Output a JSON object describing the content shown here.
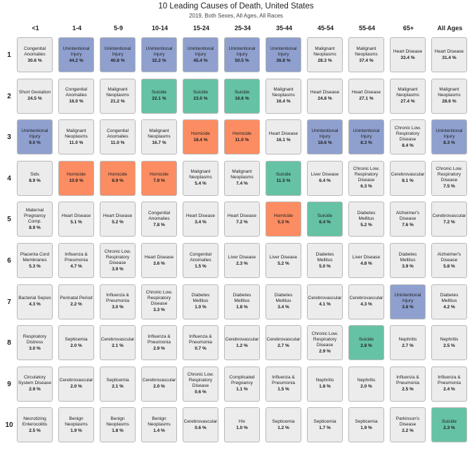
{
  "chart_data": {
    "type": "table",
    "title": "10 Leading Causes of Death, United States",
    "subtitle": "2019, Both Sexes, All Ages, All Races",
    "columns": [
      "<1",
      "1-4",
      "5-9",
      "10-14",
      "15-24",
      "25-34",
      "35-44",
      "45-54",
      "55-64",
      "65+",
      "All Ages"
    ],
    "rows": [
      "1",
      "2",
      "3",
      "4",
      "5",
      "6",
      "7",
      "8",
      "9",
      "10"
    ],
    "highlight_colors": {
      "Unintentional Injury": "#8fa0cf",
      "Suicide": "#66c2a5",
      "Homicide": "#fc8d62",
      "default": "#ececec"
    },
    "cells": [
      [
        {
          "cause": "Congenital Anomalies",
          "pct": "30.6 %"
        },
        {
          "cause": "Unintentional Injury",
          "pct": "44.2 %"
        },
        {
          "cause": "Unintentional Injury",
          "pct": "40.8 %"
        },
        {
          "cause": "Unintentional Injury",
          "pct": "32.2 %"
        },
        {
          "cause": "Unintentional Injury",
          "pct": "45.4 %"
        },
        {
          "cause": "Unintentional Injury",
          "pct": "50.5 %"
        },
        {
          "cause": "Unintentional Injury",
          "pct": "36.8 %"
        },
        {
          "cause": "Malignant Neoplasms",
          "pct": "28.3 %"
        },
        {
          "cause": "Malignant Neoplasms",
          "pct": "37.4 %"
        },
        {
          "cause": "Heart Disease",
          "pct": "33.4 %"
        },
        {
          "cause": "Heart Disease",
          "pct": "31.4 %"
        }
      ],
      [
        {
          "cause": "Short Gestation",
          "pct": "24.5 %"
        },
        {
          "cause": "Congenital Anomalies",
          "pct": "16.0 %"
        },
        {
          "cause": "Malignant Neoplasms",
          "pct": "21.2 %"
        },
        {
          "cause": "Suicide",
          "pct": "22.1 %"
        },
        {
          "cause": "Suicide",
          "pct": "23.0 %"
        },
        {
          "cause": "Suicide",
          "pct": "16.6 %"
        },
        {
          "cause": "Malignant Neoplasms",
          "pct": "16.4 %"
        },
        {
          "cause": "Heart Disease",
          "pct": "24.8 %"
        },
        {
          "cause": "Heart Disease",
          "pct": "27.1 %"
        },
        {
          "cause": "Malignant Neoplasms",
          "pct": "27.4 %"
        },
        {
          "cause": "Malignant Neoplasms",
          "pct": "28.6 %"
        }
      ],
      [
        {
          "cause": "Unintentional Injury",
          "pct": "9.0 %"
        },
        {
          "cause": "Malignant Neoplasms",
          "pct": "11.0 %"
        },
        {
          "cause": "Congenital Anomalies",
          "pct": "11.0 %"
        },
        {
          "cause": "Malignant Neoplasms",
          "pct": "16.7 %"
        },
        {
          "cause": "Homicide",
          "pct": "18.4 %"
        },
        {
          "cause": "Homicide",
          "pct": "11.0 %"
        },
        {
          "cause": "Heart Disease",
          "pct": "16.1 %"
        },
        {
          "cause": "Unintentional Injury",
          "pct": "18.6 %"
        },
        {
          "cause": "Unintentional Injury",
          "pct": "8.3 %"
        },
        {
          "cause": "Chronic Low. Respiratory Disease",
          "pct": "8.4 %"
        },
        {
          "cause": "Unintentional Injury",
          "pct": "8.3 %"
        }
      ],
      [
        {
          "cause": "Sids",
          "pct": "8.9 %"
        },
        {
          "cause": "Homicide",
          "pct": "10.9 %"
        },
        {
          "cause": "Homicide",
          "pct": "8.9 %"
        },
        {
          "cause": "Homicide",
          "pct": "7.9 %"
        },
        {
          "cause": "Malignant Neoplasms",
          "pct": "5.4 %"
        },
        {
          "cause": "Malignant Neoplasms",
          "pct": "7.4 %"
        },
        {
          "cause": "Suicide",
          "pct": "11.5 %"
        },
        {
          "cause": "Liver Disease",
          "pct": "6.4 %"
        },
        {
          "cause": "Chronic Low. Respiratory Disease",
          "pct": "6.3 %"
        },
        {
          "cause": "Cerebrovascular",
          "pct": "8.1 %"
        },
        {
          "cause": "Chronic Low. Respiratory Disease",
          "pct": "7.5 %"
        }
      ],
      [
        {
          "cause": "Maternal Pregnancy Comp.",
          "pct": "8.9 %"
        },
        {
          "cause": "Heart Disease",
          "pct": "5.1 %"
        },
        {
          "cause": "Heart Disease",
          "pct": "5.2 %"
        },
        {
          "cause": "Congenital Anomalies",
          "pct": "7.8 %"
        },
        {
          "cause": "Heart Disease",
          "pct": "3.4 %"
        },
        {
          "cause": "Heart Disease",
          "pct": "7.2 %"
        },
        {
          "cause": "Homicide",
          "pct": "5.3 %"
        },
        {
          "cause": "Suicide",
          "pct": "6.4 %"
        },
        {
          "cause": "Diabetes Mellitus",
          "pct": "5.2 %"
        },
        {
          "cause": "Alzheimer's Disease",
          "pct": "7.6 %"
        },
        {
          "cause": "Cerebrovascular",
          "pct": "7.2 %"
        }
      ],
      [
        {
          "cause": "Placenta Cord Membranes",
          "pct": "5.3 %"
        },
        {
          "cause": "Influenza & Pneumonia",
          "pct": "4.7 %"
        },
        {
          "cause": "Chronic Low. Respiratory Disease",
          "pct": "3.9 %"
        },
        {
          "cause": "Heart Disease",
          "pct": "3.6 %"
        },
        {
          "cause": "Congenital Anomalies",
          "pct": "1.5 %"
        },
        {
          "cause": "Liver Disease",
          "pct": "2.3 %"
        },
        {
          "cause": "Liver Disease",
          "pct": "5.2 %"
        },
        {
          "cause": "Diabetes Mellitus",
          "pct": "5.0 %"
        },
        {
          "cause": "Liver Disease",
          "pct": "4.8 %"
        },
        {
          "cause": "Diabetes Mellitus",
          "pct": "3.9 %"
        },
        {
          "cause": "Alzheimer's Disease",
          "pct": "5.8 %"
        }
      ],
      [
        {
          "cause": "Bacterial Sepsis",
          "pct": "4.3 %"
        },
        {
          "cause": "Perinatal Period",
          "pct": "2.2 %"
        },
        {
          "cause": "Influenza & Pneumonia",
          "pct": "3.0 %"
        },
        {
          "cause": "Chronic Low. Respiratory Disease",
          "pct": "3.3 %"
        },
        {
          "cause": "Diabetes Mellitus",
          "pct": "1.0 %"
        },
        {
          "cause": "Diabetes Mellitus",
          "pct": "1.8 %"
        },
        {
          "cause": "Diabetes Mellitus",
          "pct": "3.4 %"
        },
        {
          "cause": "Cerebrovascular",
          "pct": "4.1 %"
        },
        {
          "cause": "Cerebrovascular",
          "pct": "4.3 %"
        },
        {
          "cause": "Unintentional Injury",
          "pct": "3.8 %"
        },
        {
          "cause": "Diabetes Mellitus",
          "pct": "4.2 %"
        }
      ],
      [
        {
          "cause": "Respiratory Distress",
          "pct": "3.0 %"
        },
        {
          "cause": "Septicemia",
          "pct": "2.0 %"
        },
        {
          "cause": "Cerebrovascular",
          "pct": "2.1 %"
        },
        {
          "cause": "Influenza & Pneumonia",
          "pct": "2.9 %"
        },
        {
          "cause": "Influenza & Pneumonia",
          "pct": "0.7 %"
        },
        {
          "cause": "Cerebrovascular",
          "pct": "1.2 %"
        },
        {
          "cause": "Cerebrovascular",
          "pct": "2.7 %"
        },
        {
          "cause": "Chronic Low. Respiratory Disease",
          "pct": "2.9 %"
        },
        {
          "cause": "Suicide",
          "pct": "2.8 %"
        },
        {
          "cause": "Nephritis",
          "pct": "2.7 %"
        },
        {
          "cause": "Nephritis",
          "pct": "2.5 %"
        }
      ],
      [
        {
          "cause": "Circulatory System Disease",
          "pct": "2.9 %"
        },
        {
          "cause": "Cerebrovascular",
          "pct": "2.0 %"
        },
        {
          "cause": "Septicemia",
          "pct": "2.1 %"
        },
        {
          "cause": "Cerebrovascular",
          "pct": "2.0 %"
        },
        {
          "cause": "Chronic Low. Respiratory Disease",
          "pct": "0.6 %"
        },
        {
          "cause": "Complicated Pregnancy",
          "pct": "1.1 %"
        },
        {
          "cause": "Influenza & Pneumonia",
          "pct": "1.5 %"
        },
        {
          "cause": "Nephritis",
          "pct": "1.8 %"
        },
        {
          "cause": "Nephritis",
          "pct": "2.0 %"
        },
        {
          "cause": "Influenza & Pneumonia",
          "pct": "2.5 %"
        },
        {
          "cause": "Influenza & Pneumonia",
          "pct": "2.4 %"
        }
      ],
      [
        {
          "cause": "Necrotizing Enterocolitis",
          "pct": "2.5 %"
        },
        {
          "cause": "Benign Neoplasms",
          "pct": "1.9 %"
        },
        {
          "cause": "Benign Neoplasms",
          "pct": "1.8 %"
        },
        {
          "cause": "Benign Neoplasms",
          "pct": "1.4 %"
        },
        {
          "cause": "Cerebrovascular",
          "pct": "0.6 %"
        },
        {
          "cause": "Hiv",
          "pct": "1.0 %"
        },
        {
          "cause": "Septicemia",
          "pct": "1.2 %"
        },
        {
          "cause": "Septicemia",
          "pct": "1.7 %"
        },
        {
          "cause": "Septicemia",
          "pct": "1.9 %"
        },
        {
          "cause": "Parkinson's Disease",
          "pct": "2.2 %"
        },
        {
          "cause": "Suicide",
          "pct": "2.3 %"
        }
      ]
    ]
  }
}
